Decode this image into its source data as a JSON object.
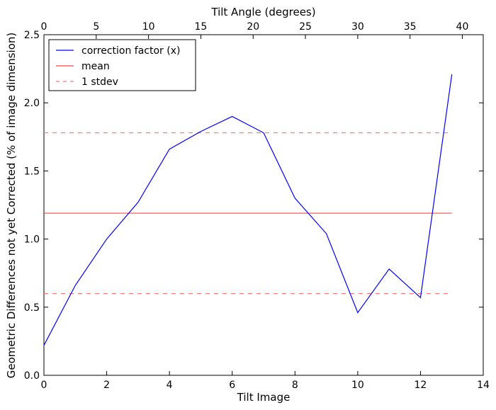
{
  "chart_data": {
    "type": "line",
    "xlabel": "Tilt Image",
    "ylabel": "Geometric Differences not yet Corrected (% of image dimension)",
    "top_xlabel": "Tilt Angle (degrees)",
    "xlim": [
      0,
      14
    ],
    "ylim": [
      0.0,
      2.5
    ],
    "top_xlim": [
      0,
      42
    ],
    "x_ticks": [
      0,
      2,
      4,
      6,
      8,
      10,
      12,
      14
    ],
    "y_ticks": [
      0.0,
      0.5,
      1.0,
      1.5,
      2.0,
      2.5
    ],
    "top_x_ticks": [
      0,
      5,
      10,
      15,
      20,
      25,
      30,
      35,
      40
    ],
    "x_tick_labels": [
      "0",
      "2",
      "4",
      "6",
      "8",
      "10",
      "12",
      "14"
    ],
    "y_tick_labels": [
      "0.0",
      "0.5",
      "1.0",
      "1.5",
      "2.0",
      "2.5"
    ],
    "top_x_tick_labels": [
      "0",
      "5",
      "10",
      "15",
      "20",
      "25",
      "30",
      "35",
      "40"
    ],
    "grid": false,
    "legend_position": "top-left",
    "series": [
      {
        "name": "correction factor (x)",
        "color": "#0000ff",
        "style": "solid",
        "x": [
          0,
          1,
          2,
          3,
          4,
          5,
          6,
          7,
          8,
          9,
          10,
          11,
          12,
          13
        ],
        "y": [
          0.22,
          0.66,
          1.0,
          1.27,
          1.66,
          1.79,
          1.9,
          1.78,
          1.3,
          1.04,
          0.46,
          0.78,
          0.57,
          2.21
        ]
      },
      {
        "name": "mean",
        "color": "#ff4444",
        "style": "solid",
        "x": [
          0,
          13
        ],
        "y": [
          1.19,
          1.19
        ]
      },
      {
        "name": "1 stdev",
        "color": "#ff7777",
        "style": "dashed",
        "x": [
          0,
          13
        ],
        "y": [
          1.78,
          1.78
        ]
      },
      {
        "name": "",
        "color": "#ff7777",
        "style": "dashed",
        "x": [
          0,
          13
        ],
        "y": [
          0.6,
          0.6
        ]
      }
    ]
  }
}
